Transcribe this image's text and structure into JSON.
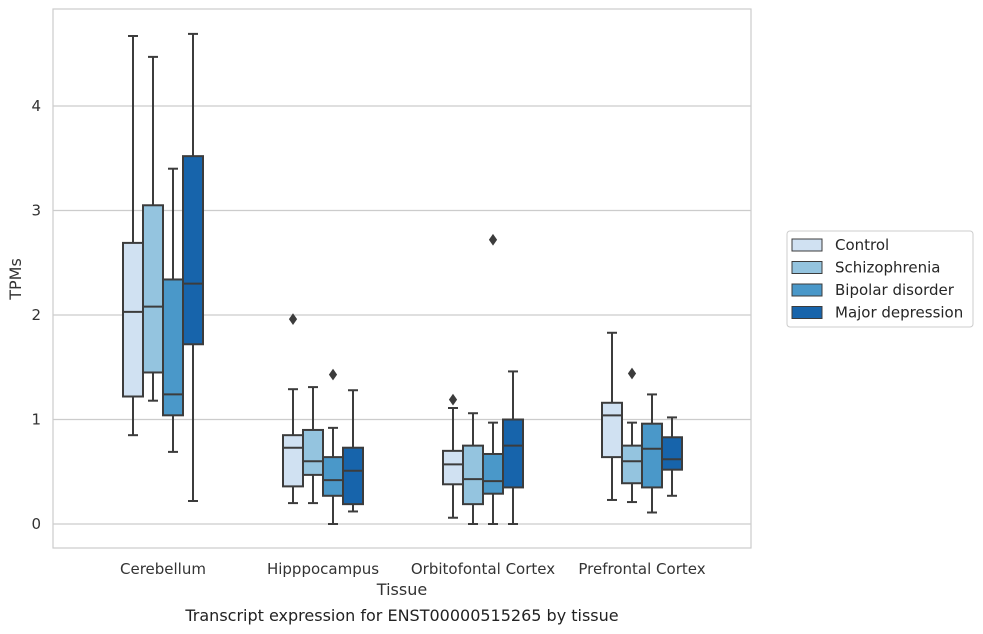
{
  "chart_data": {
    "type": "box",
    "xlabel": "Tissue",
    "ylabel": "TPMs",
    "caption": "Transcript expression for ENST00000515265 by tissue",
    "categories": [
      "Cerebellum",
      "Hipppocampus",
      "Orbitofontal Cortex",
      "Prefrontal Cortex"
    ],
    "ylim": [
      -0.23,
      4.93
    ],
    "yticks": [
      0,
      1,
      2,
      3,
      4
    ],
    "grid": "horizontal",
    "legend_position": "right",
    "series": [
      {
        "name": "Control",
        "color": "#d0e1f2",
        "boxes": [
          {
            "whisker_low": 0.85,
            "q1": 1.22,
            "median": 2.03,
            "q3": 2.69,
            "whisker_high": 4.67,
            "outliers": []
          },
          {
            "whisker_low": 0.2,
            "q1": 0.36,
            "median": 0.73,
            "q3": 0.85,
            "whisker_high": 1.29,
            "outliers": [
              1.96
            ]
          },
          {
            "whisker_low": 0.06,
            "q1": 0.38,
            "median": 0.57,
            "q3": 0.7,
            "whisker_high": 1.11,
            "outliers": [
              1.19
            ]
          },
          {
            "whisker_low": 0.23,
            "q1": 0.64,
            "median": 1.04,
            "q3": 1.16,
            "whisker_high": 1.83,
            "outliers": []
          }
        ]
      },
      {
        "name": "Schizophrenia",
        "color": "#94c4df",
        "boxes": [
          {
            "whisker_low": 1.18,
            "q1": 1.45,
            "median": 2.08,
            "q3": 3.05,
            "whisker_high": 4.47,
            "outliers": []
          },
          {
            "whisker_low": 0.2,
            "q1": 0.47,
            "median": 0.6,
            "q3": 0.9,
            "whisker_high": 1.31,
            "outliers": []
          },
          {
            "whisker_low": 0.0,
            "q1": 0.19,
            "median": 0.43,
            "q3": 0.75,
            "whisker_high": 1.06,
            "outliers": []
          },
          {
            "whisker_low": 0.21,
            "q1": 0.39,
            "median": 0.6,
            "q3": 0.75,
            "whisker_high": 0.97,
            "outliers": [
              1.44
            ]
          }
        ]
      },
      {
        "name": "Bipolar disorder",
        "color": "#4a98c9",
        "boxes": [
          {
            "whisker_low": 0.69,
            "q1": 1.04,
            "median": 1.24,
            "q3": 2.34,
            "whisker_high": 3.4,
            "outliers": []
          },
          {
            "whisker_low": 0.0,
            "q1": 0.27,
            "median": 0.42,
            "q3": 0.64,
            "whisker_high": 0.92,
            "outliers": [
              1.43
            ]
          },
          {
            "whisker_low": 0.0,
            "q1": 0.29,
            "median": 0.41,
            "q3": 0.67,
            "whisker_high": 0.97,
            "outliers": [
              2.72
            ]
          },
          {
            "whisker_low": 0.11,
            "q1": 0.35,
            "median": 0.72,
            "q3": 0.96,
            "whisker_high": 1.24,
            "outliers": []
          }
        ]
      },
      {
        "name": "Major depression",
        "color": "#1764ab",
        "boxes": [
          {
            "whisker_low": 0.22,
            "q1": 1.72,
            "median": 2.3,
            "q3": 3.52,
            "whisker_high": 4.69,
            "outliers": []
          },
          {
            "whisker_low": 0.12,
            "q1": 0.19,
            "median": 0.51,
            "q3": 0.73,
            "whisker_high": 1.28,
            "outliers": []
          },
          {
            "whisker_low": 0.0,
            "q1": 0.35,
            "median": 0.75,
            "q3": 1.0,
            "whisker_high": 1.46,
            "outliers": []
          },
          {
            "whisker_low": 0.27,
            "q1": 0.52,
            "median": 0.62,
            "q3": 0.83,
            "whisker_high": 1.02,
            "outliers": []
          }
        ]
      }
    ]
  }
}
